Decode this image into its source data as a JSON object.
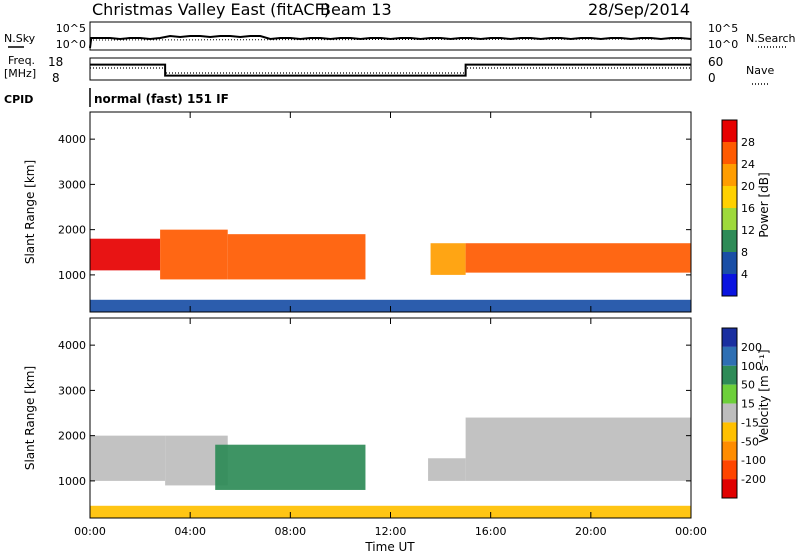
{
  "header": {
    "title": "Christmas Valley East (fitACF)",
    "beam": "Beam 13",
    "date": "28/Sep/2014"
  },
  "sky_panel": {
    "left_label": "N.Sky",
    "right_label": "N.Search",
    "ticks": [
      "10^5",
      "10^0"
    ]
  },
  "freq_panel": {
    "left_label_1": "Freq.",
    "left_label_2": "[MHz]",
    "left_ticks": [
      "18",
      "8"
    ],
    "right_label": "Nave",
    "right_ticks": [
      "60",
      "0"
    ]
  },
  "cpid": {
    "label": "CPID",
    "value": "normal (fast) 151 IF"
  },
  "power_panel": {
    "ylabel": "Slant Range [km]",
    "cbar_label": "Power [dB]",
    "cbar_ticks": [
      "28",
      "24",
      "20",
      "16",
      "12",
      "8",
      "4"
    ],
    "cbar_colors": [
      "#e60000",
      "#ff5a00",
      "#ff9d00",
      "#ffd100",
      "#9ed93b",
      "#2e8b57",
      "#1a4fa6",
      "#0a14e0"
    ]
  },
  "velocity_panel": {
    "ylabel": "Slant Range [km]",
    "cbar_label": "Velocity [m s⁻¹]",
    "cbar_ticks": [
      "200",
      "100",
      "50",
      "15",
      "-15",
      "-50",
      "-100",
      "-200"
    ],
    "cbar_colors": [
      "#1a2fa0",
      "#2e6fb3",
      "#2e8b57",
      "#6dcf3a",
      "#bdbdbd",
      "#ffc000",
      "#ff8c00",
      "#ff4500",
      "#e00000"
    ]
  },
  "x_axis": {
    "label": "Time UT",
    "ticks": [
      "00:00",
      "04:00",
      "08:00",
      "12:00",
      "16:00",
      "20:00",
      "00:00"
    ]
  },
  "chart_data": {
    "type": "heatmap",
    "title": "Christmas Valley East (fitACF)",
    "subtitle": "Beam 13",
    "date": "28/Sep/2014",
    "xlabel": "Time UT",
    "ylabel": "Slant Range [km]",
    "xlim": [
      "00:00",
      "24:00"
    ],
    "ylim": [
      180,
      4600
    ],
    "yticks": [
      1000,
      2000,
      3000,
      4000
    ],
    "panels": [
      {
        "name": "Power",
        "quantity_label": "Power [dB]",
        "scale": [
          0,
          30
        ],
        "features": [
          {
            "t0": 0.0,
            "t1": 2.8,
            "r0": 1100,
            "r1": 1800,
            "value": 27
          },
          {
            "t0": 2.8,
            "t1": 5.5,
            "r0": 900,
            "r1": 2000,
            "value": 24
          },
          {
            "t0": 5.5,
            "t1": 11.0,
            "r0": 900,
            "r1": 1900,
            "value": 25
          },
          {
            "t0": 13.6,
            "t1": 15.0,
            "r0": 1000,
            "r1": 1700,
            "value": 22
          },
          {
            "t0": 15.0,
            "t1": 24.0,
            "r0": 1050,
            "r1": 1700,
            "value": 26
          },
          {
            "t0": 0.0,
            "t1": 24.0,
            "r0": 180,
            "r1": 450,
            "value": 6
          }
        ]
      },
      {
        "name": "Velocity",
        "quantity_label": "Velocity [m s⁻¹]",
        "scale": [
          -200,
          200
        ],
        "features": [
          {
            "t0": 0.0,
            "t1": 3.0,
            "r0": 1000,
            "r1": 2000,
            "value": 0
          },
          {
            "t0": 3.0,
            "t1": 5.5,
            "r0": 900,
            "r1": 2000,
            "value": 0
          },
          {
            "t0": 5.0,
            "t1": 11.0,
            "r0": 800,
            "r1": 1800,
            "value": 60
          },
          {
            "t0": 13.5,
            "t1": 15.0,
            "r0": 1000,
            "r1": 1500,
            "value": 0
          },
          {
            "t0": 15.0,
            "t1": 24.0,
            "r0": 1000,
            "r1": 2400,
            "value": 0
          },
          {
            "t0": 0.0,
            "t1": 24.0,
            "r0": 180,
            "r1": 450,
            "value": -30
          }
        ]
      }
    ],
    "frequency_MHz": [
      {
        "t0": 0.0,
        "t1": 3.0,
        "value": 15
      },
      {
        "t0": 3.0,
        "t1": 15.0,
        "value": 10
      },
      {
        "t0": 15.0,
        "t1": 24.0,
        "value": 15
      }
    ]
  }
}
